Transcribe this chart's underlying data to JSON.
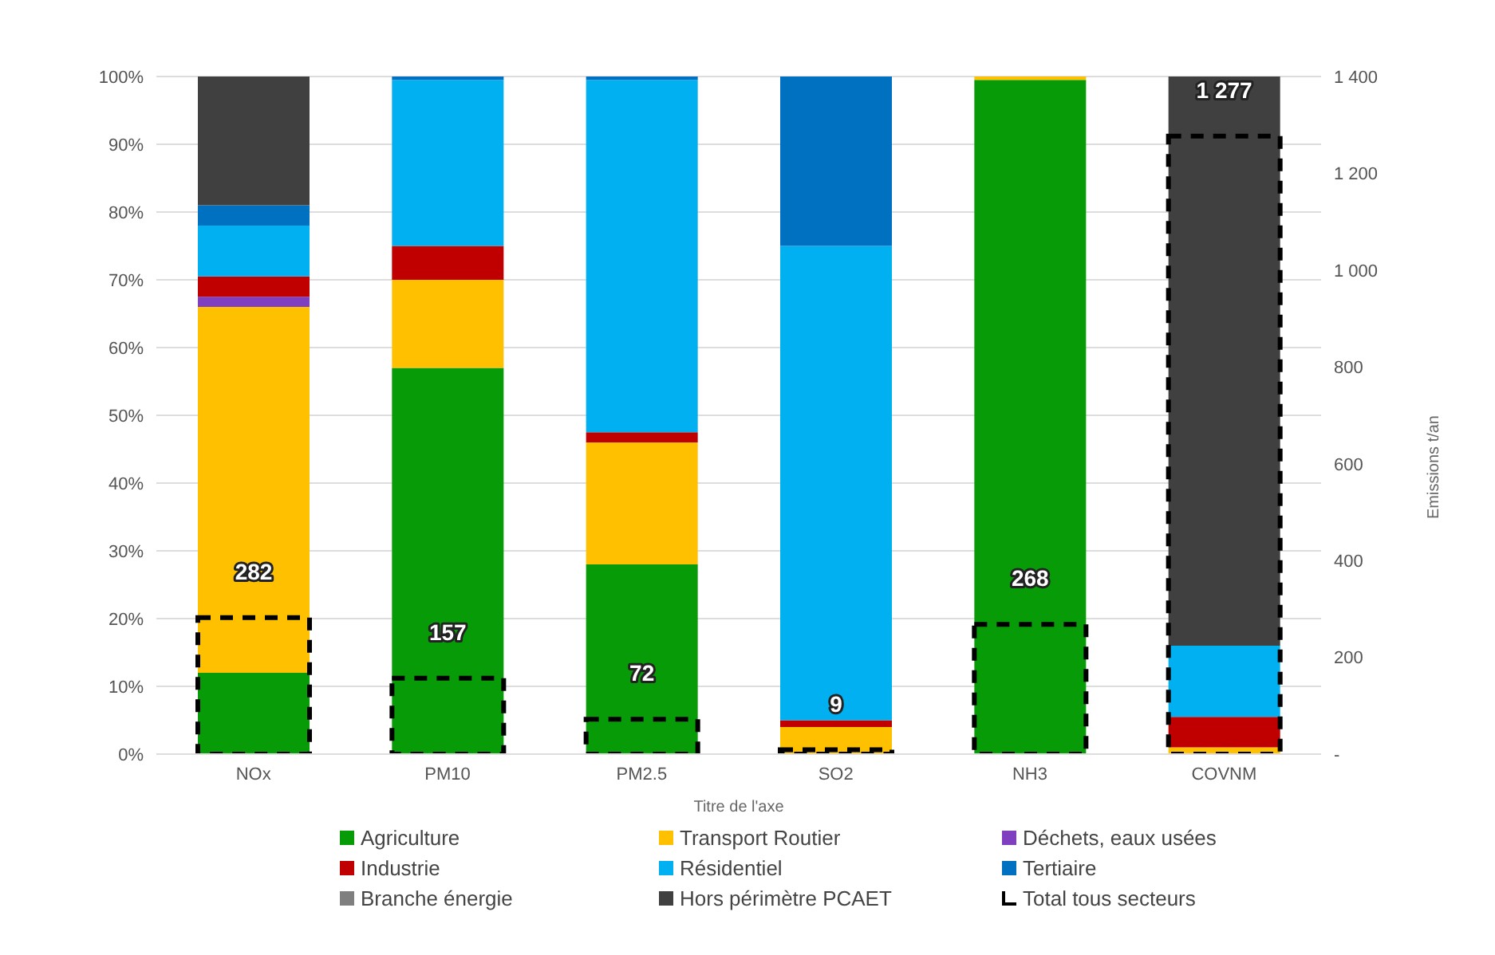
{
  "chart_data": {
    "type": "bar",
    "stacked": true,
    "xlabel": "Titre de l'axe",
    "y2label": "Emissions t/an",
    "categories": [
      "NOx",
      "PM10",
      "PM2.5",
      "SO2",
      "NH3",
      "COVNM"
    ],
    "series": [
      {
        "name": "Agriculture",
        "color": "#079b07",
        "values": [
          12,
          57,
          28,
          0,
          99.5,
          0
        ]
      },
      {
        "name": "Transport Routier",
        "color": "#ffc000",
        "values": [
          54,
          13,
          18,
          4,
          0.5,
          1
        ]
      },
      {
        "name": "Déchets, eaux usées",
        "color": "#7f3fbf",
        "values": [
          1.5,
          0,
          0,
          0,
          0,
          0
        ]
      },
      {
        "name": "Industrie",
        "color": "#c00000",
        "values": [
          3,
          5,
          1.5,
          1,
          0,
          4.5
        ]
      },
      {
        "name": "Résidentiel",
        "color": "#00b0f0",
        "values": [
          7.5,
          24.5,
          52,
          70,
          0,
          10.5
        ]
      },
      {
        "name": "Tertiaire",
        "color": "#0070c0",
        "values": [
          3,
          0.5,
          0.5,
          25,
          0,
          0
        ]
      },
      {
        "name": "Branche énergie",
        "color": "#7f7f7f",
        "values": [
          0,
          0,
          0,
          0,
          0,
          0
        ]
      },
      {
        "name": "Hors périmètre PCAET",
        "color": "#404040",
        "values": [
          19,
          0,
          0,
          0,
          0,
          84
        ]
      },
      {
        "name": "Total tous secteurs",
        "color": "#000000",
        "axis": "y2",
        "line_style": "dashed",
        "values": [
          282,
          157,
          72,
          9,
          268,
          1277
        ],
        "value_labels": [
          "282",
          "157",
          "72",
          "9",
          "268",
          "1 277"
        ]
      }
    ],
    "ylim": [
      0,
      100
    ],
    "yticks": [
      {
        "value": 0,
        "label": "0%"
      },
      {
        "value": 10,
        "label": "10%"
      },
      {
        "value": 20,
        "label": "20%"
      },
      {
        "value": 30,
        "label": "30%"
      },
      {
        "value": 40,
        "label": "40%"
      },
      {
        "value": 50,
        "label": "50%"
      },
      {
        "value": 60,
        "label": "60%"
      },
      {
        "value": 70,
        "label": "70%"
      },
      {
        "value": 80,
        "label": "80%"
      },
      {
        "value": 90,
        "label": "90%"
      },
      {
        "value": 100,
        "label": "100%"
      }
    ],
    "y2lim": [
      0,
      1400
    ],
    "y2ticks": [
      {
        "value": 0,
        "label": "-"
      },
      {
        "value": 200,
        "label": "200"
      },
      {
        "value": 400,
        "label": "400"
      },
      {
        "value": 600,
        "label": "600"
      },
      {
        "value": 800,
        "label": "800"
      },
      {
        "value": 1000,
        "label": "1 000"
      },
      {
        "value": 1200,
        "label": "1 200"
      },
      {
        "value": 1400,
        "label": "1 400"
      }
    ],
    "grid": "y",
    "legend": "bottom"
  }
}
